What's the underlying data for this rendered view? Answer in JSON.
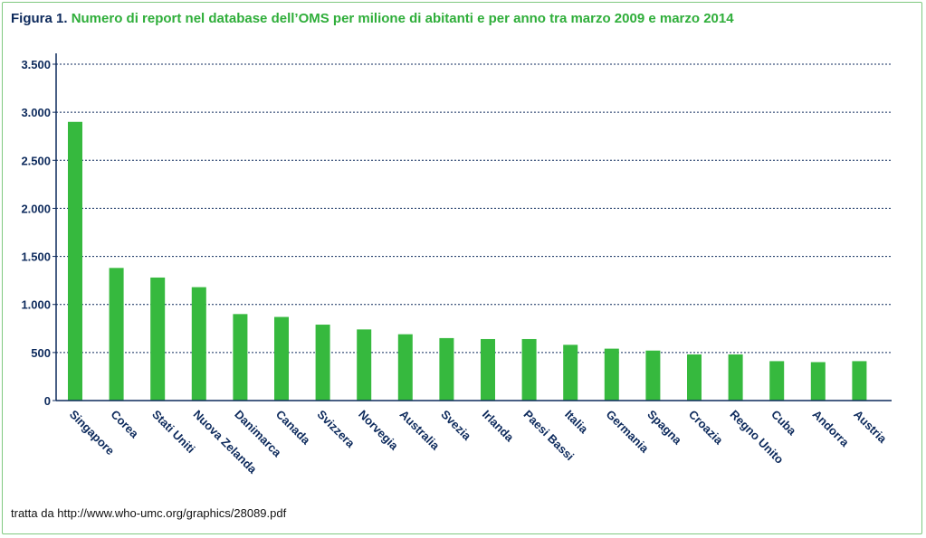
{
  "figure": {
    "label": "Figura 1.",
    "title": "Numero di report nel database dell’OMS per milione di abitanti e per anno tra marzo 2009 e marzo 2014",
    "source": "tratta da http://www.who-umc.org/graphics/28089.pdf"
  },
  "colors": {
    "bar": "#36b93e",
    "axis": "#0d2a5c",
    "title_accent": "#2fae3a",
    "border": "#7fc97f"
  },
  "chart_data": {
    "type": "bar",
    "categories": [
      "Singapore",
      "Corea",
      "Stati Uniti",
      "Nuova Zelanda",
      "Danimarca",
      "Canada",
      "Svizzera",
      "Norvegia",
      "Australia",
      "Svezia",
      "Irlanda",
      "Paesi Bassi",
      "Italia",
      "Germania",
      "Spagna",
      "Croazia",
      "Regno Unito",
      "Cuba",
      "Andorra",
      "Austria"
    ],
    "values": [
      2900,
      1380,
      1280,
      1180,
      900,
      870,
      790,
      740,
      690,
      650,
      640,
      640,
      580,
      540,
      520,
      480,
      480,
      410,
      400,
      410
    ],
    "title": "Numero di report nel database dell’OMS per milione di abitanti e per anno tra marzo 2009 e marzo 2014",
    "xlabel": "",
    "ylabel": "",
    "ylim": [
      0,
      3500
    ],
    "yticks": [
      0,
      500,
      1000,
      1500,
      2000,
      2500,
      3000,
      3500
    ],
    "ytick_labels": [
      "0",
      "500",
      "1.000",
      "1.500",
      "2.000",
      "2.500",
      "3.000",
      "3.500"
    ],
    "grid": "horizontal-dashed",
    "legend": "none"
  }
}
